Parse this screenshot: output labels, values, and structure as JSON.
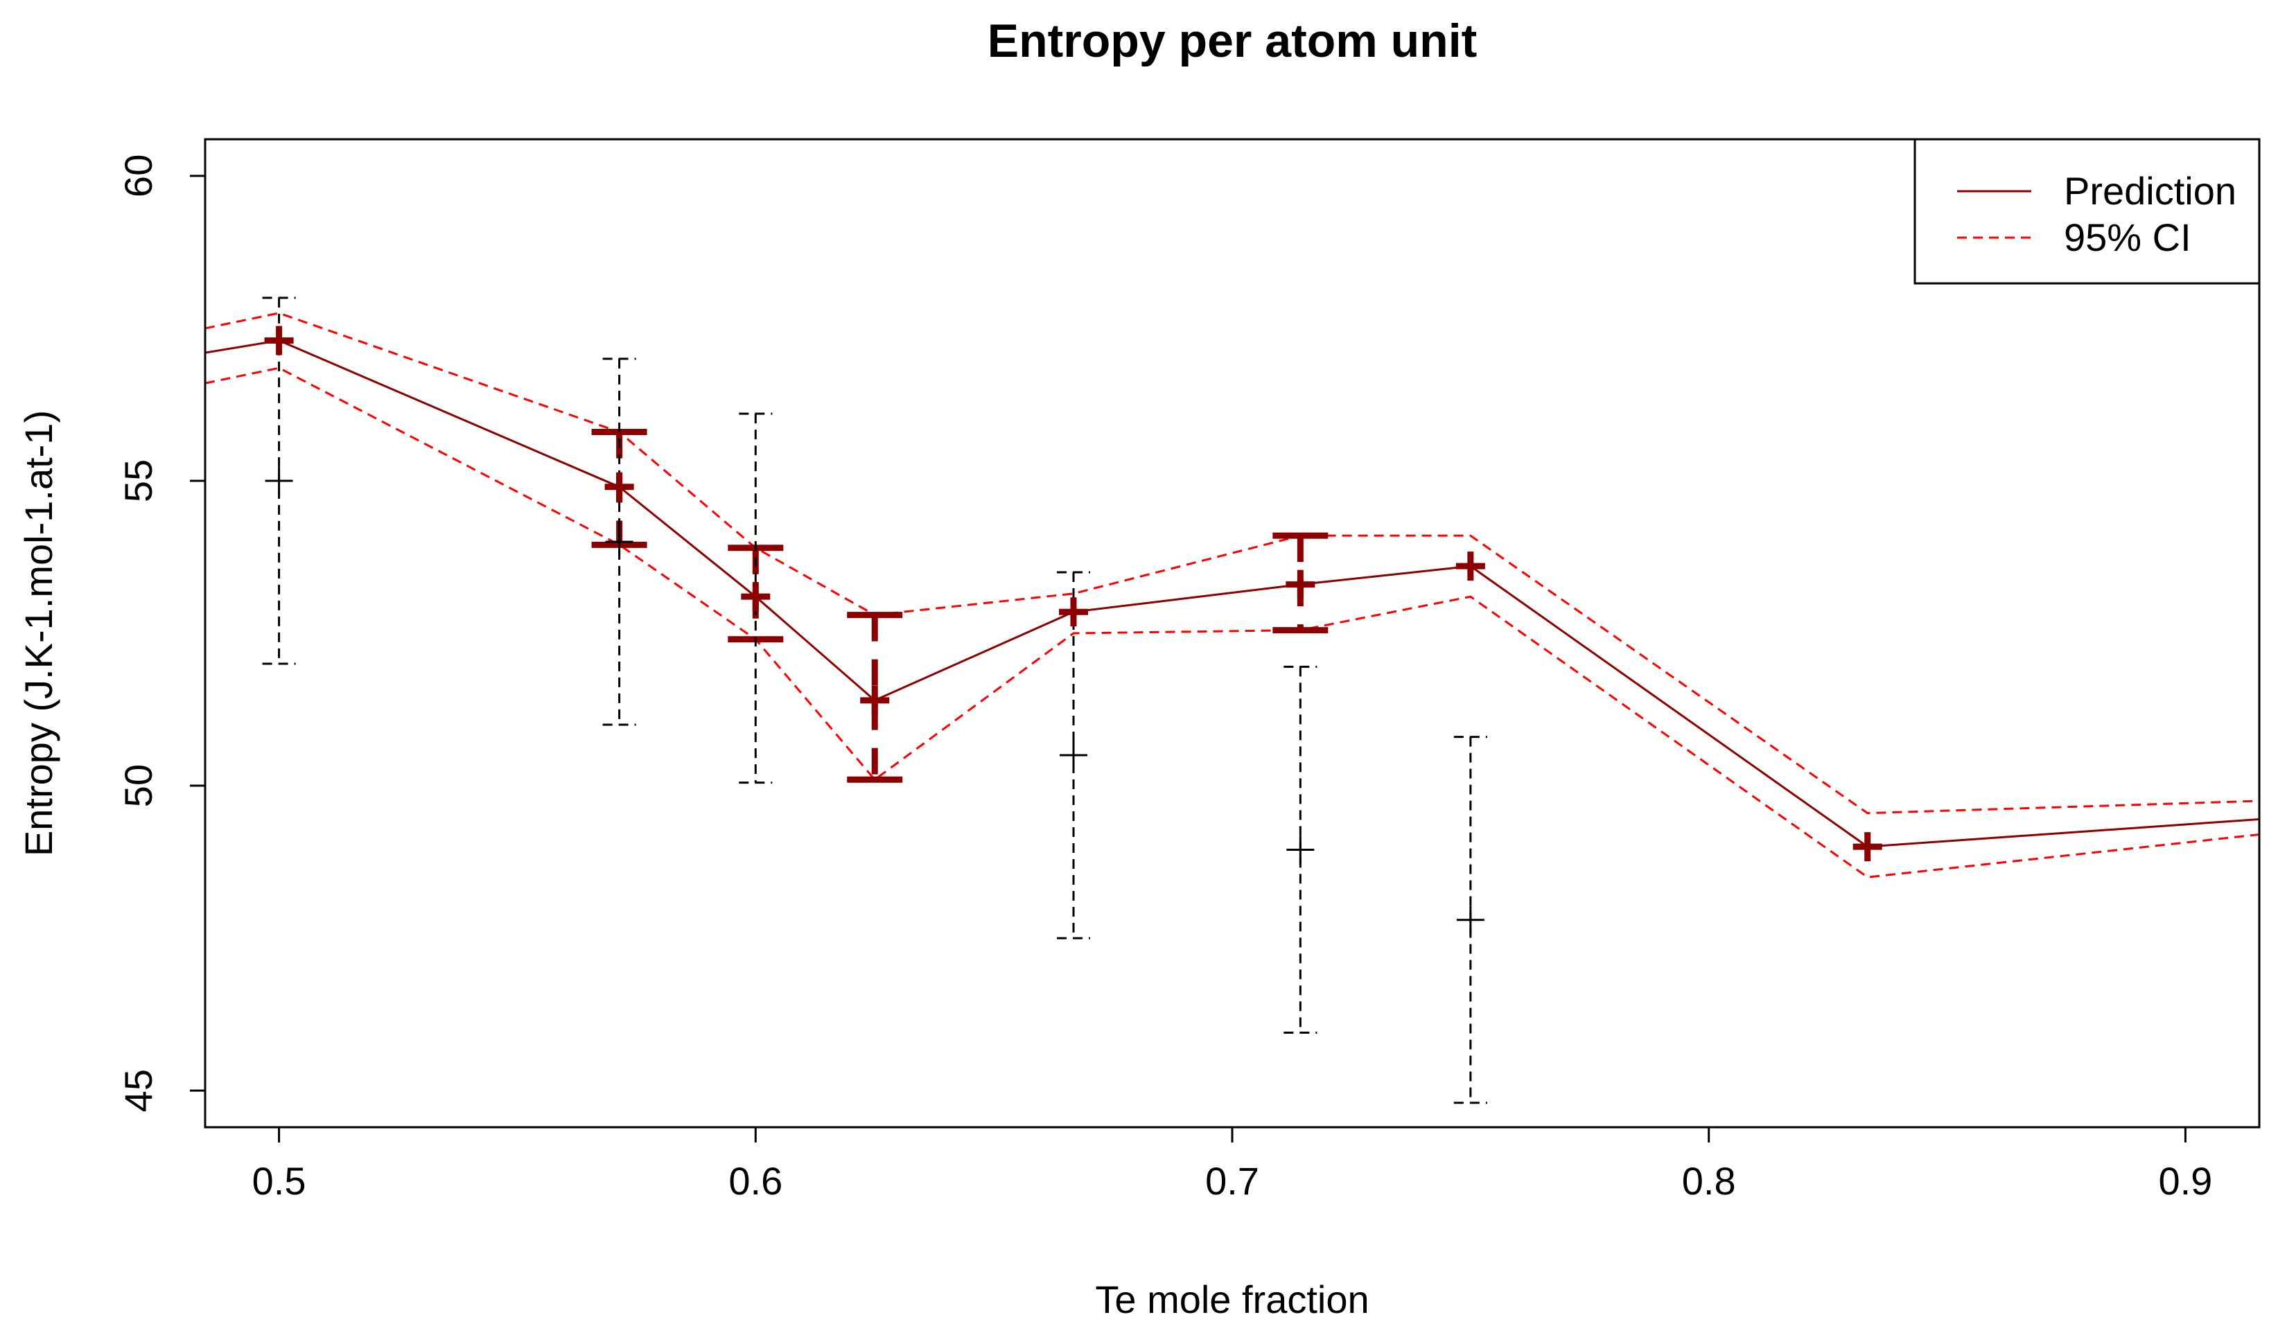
{
  "chart_data": {
    "type": "line",
    "title": "Entropy per atom unit",
    "xlabel": "Te mole fraction",
    "ylabel": "Entropy (J.K-1.mol-1.at-1)",
    "xlim": [
      0.4845,
      0.9155
    ],
    "ylim": [
      44.4,
      60.6
    ],
    "xticks": [
      0.5,
      0.6,
      0.7,
      0.8,
      0.9
    ],
    "xtick_labels": [
      "0.5",
      "0.6",
      "0.7",
      "0.8",
      "0.9"
    ],
    "yticks": [
      45,
      50,
      55,
      60
    ],
    "ytick_labels": [
      "45",
      "50",
      "55",
      "60"
    ],
    "legend": {
      "position": "top-right",
      "entries": [
        {
          "label": "Prediction",
          "style": "solid",
          "color": "#8b0000"
        },
        {
          "label": "95% CI",
          "style": "dashed",
          "color": "#ff0000"
        }
      ]
    },
    "prediction_line": {
      "name": "Prediction",
      "color": "#8b0000",
      "x": [
        0.4845,
        0.5,
        0.5714,
        0.6,
        0.625,
        0.6667,
        0.7143,
        0.75,
        0.8333,
        0.9155
      ],
      "y": [
        57.1,
        57.3,
        54.9,
        53.1,
        51.4,
        52.85,
        53.3,
        53.6,
        49.0,
        49.45
      ]
    },
    "ci_upper": {
      "name": "95% CI upper",
      "color": "#ff0000",
      "x": [
        0.4845,
        0.5,
        0.5714,
        0.6,
        0.625,
        0.6667,
        0.7143,
        0.75,
        0.8333,
        0.9155
      ],
      "y": [
        57.5,
        57.75,
        55.8,
        53.9,
        52.8,
        53.15,
        54.1,
        54.1,
        49.55,
        49.75
      ]
    },
    "ci_lower": {
      "name": "95% CI lower",
      "color": "#ff0000",
      "x": [
        0.4845,
        0.5,
        0.5714,
        0.6,
        0.625,
        0.6667,
        0.7143,
        0.75,
        0.8333,
        0.9155
      ],
      "y": [
        56.6,
        56.85,
        53.95,
        52.4,
        50.1,
        52.5,
        52.55,
        53.1,
        48.5,
        49.2
      ]
    },
    "predicted_points": [
      {
        "x": 0.5,
        "y": 57.3
      },
      {
        "x": 0.5714,
        "y": 54.9
      },
      {
        "x": 0.6,
        "y": 53.1
      },
      {
        "x": 0.625,
        "y": 51.4
      },
      {
        "x": 0.6667,
        "y": 52.85
      },
      {
        "x": 0.7143,
        "y": 53.3
      },
      {
        "x": 0.75,
        "y": 53.6
      },
      {
        "x": 0.8333,
        "y": 49.0
      }
    ],
    "prediction_intervals": [
      {
        "x": 0.5714,
        "low": 53.95,
        "high": 55.8
      },
      {
        "x": 0.6,
        "low": 52.4,
        "high": 53.9
      },
      {
        "x": 0.625,
        "low": 50.1,
        "high": 52.8
      },
      {
        "x": 0.7143,
        "low": 52.55,
        "high": 54.1
      }
    ],
    "observed": [
      {
        "x": 0.5,
        "y": 55.0,
        "low": 52.0,
        "high": 58.0
      },
      {
        "x": 0.5714,
        "y": 54.0,
        "low": 51.0,
        "high": 57.0
      },
      {
        "x": 0.6,
        "y": 53.1,
        "low": 50.05,
        "high": 56.1
      },
      {
        "x": 0.6667,
        "y": 50.5,
        "low": 47.5,
        "high": 53.5
      },
      {
        "x": 0.7143,
        "y": 48.95,
        "low": 45.95,
        "high": 51.95
      },
      {
        "x": 0.75,
        "y": 47.8,
        "low": 44.8,
        "high": 50.8
      }
    ]
  }
}
